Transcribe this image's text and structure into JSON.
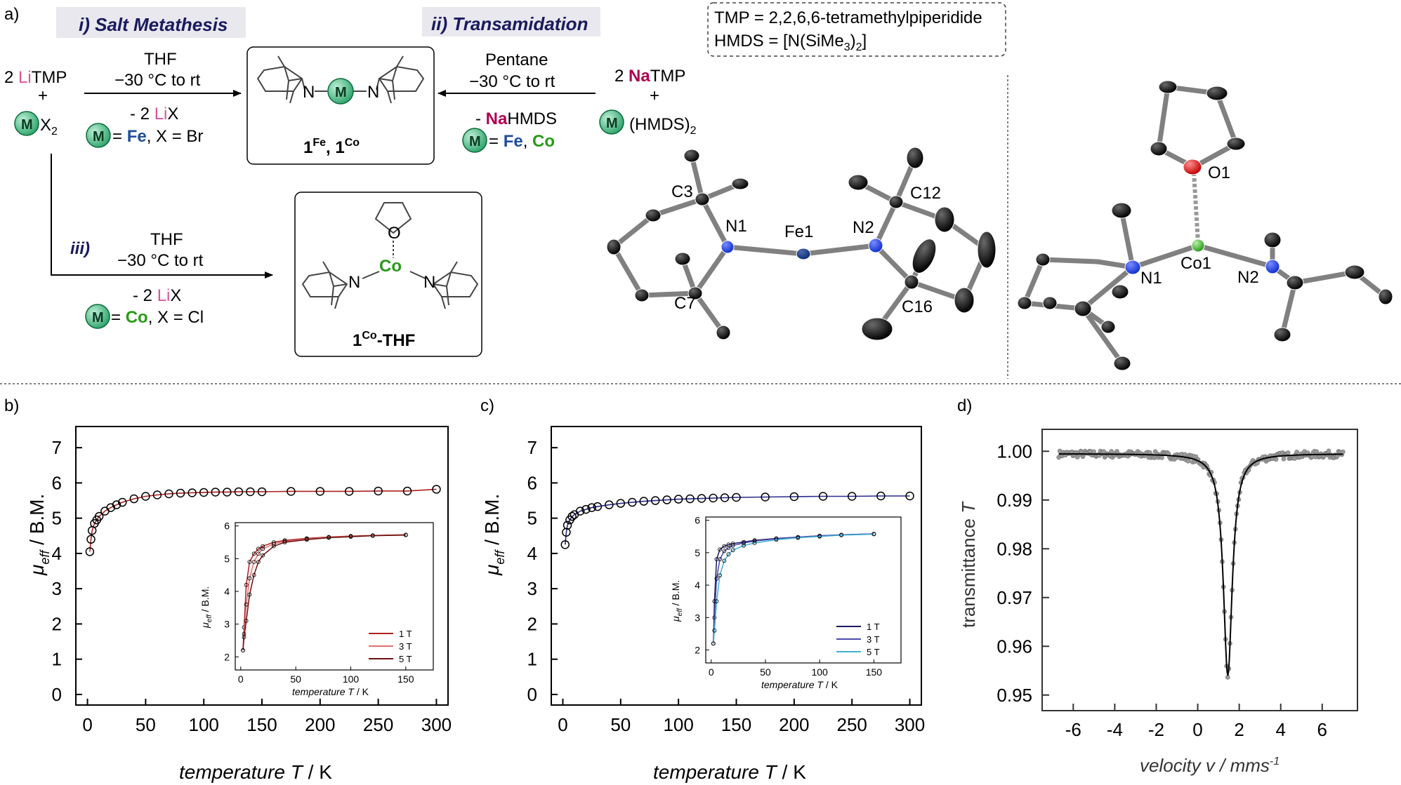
{
  "panel_labels": {
    "a": "a)",
    "b": "b)",
    "c": "c)",
    "d": "d)"
  },
  "scheme": {
    "route1": {
      "label": "i) Salt Metathesis"
    },
    "route2": {
      "label": "ii) Transamidation"
    },
    "route3": {
      "label": "iii)"
    },
    "legend": {
      "line1": "TMP = 2,2,6,6-tetramethylpiperidide",
      "line2_pre": "HMDS = [N(SiMe",
      "line2_sub": "3",
      "line2_mid": ")",
      "line2_sub2": "2",
      "line2_post": "]"
    },
    "left_reagent": {
      "count": "2 ",
      "li": "Li",
      "tmp": "TMP",
      "plus": "+",
      "m": "M",
      "x2": "X",
      "x2_sub": "2"
    },
    "right_reagent": {
      "count": "2 ",
      "na": "Na",
      "tmp": "TMP",
      "plus": "+",
      "m": "M",
      "hmds": "(HMDS)",
      "hmds_sub": "2"
    },
    "arrow1": {
      "solvent": "THF",
      "temp": "−30 °C to rt",
      "byproduct_pre": "- 2 ",
      "byproduct_li": "Li",
      "byproduct_post": "X",
      "cond_eq": " = ",
      "cond_fe": "Fe",
      "cond_rest": ", X = Br"
    },
    "arrow2": {
      "solvent": "Pentane",
      "temp": "−30 °C to rt",
      "byproduct_pre": "- ",
      "byproduct_na": "Na",
      "byproduct_post": "HMDS",
      "cond_eq": " = ",
      "cond_fe": "Fe",
      "cond_comma": ", ",
      "cond_co": "Co"
    },
    "arrow3": {
      "solvent": "THF",
      "temp": "−30 °C to rt",
      "byproduct_pre": "- 2 ",
      "byproduct_li": "Li",
      "byproduct_post": "X",
      "cond_eq": " = ",
      "cond_co": "Co",
      "cond_rest": ", X = Cl"
    },
    "product1": {
      "n_left": "N",
      "n_right": "N",
      "m": "M",
      "lab1": "1",
      "sup1": "Fe",
      "comma": ", ",
      "lab2": "1",
      "sup2": "Co"
    },
    "product2": {
      "n_left": "N",
      "n_right": "N",
      "o": "O",
      "co": "Co",
      "lab": "1",
      "sup": "Co",
      "post": "-THF"
    }
  },
  "xray_fe": {
    "atoms": [
      "C3",
      "N1",
      "Fe1",
      "N2",
      "C12",
      "C7",
      "C16"
    ]
  },
  "xray_co": {
    "atoms": [
      "O1",
      "N1",
      "Co1",
      "N2"
    ]
  },
  "colors": {
    "li": "#d9559a",
    "na": "#b0004f",
    "fe": "#1f4e99",
    "co": "#2a9a1a",
    "m_ball": "#3cb87a",
    "n_atom": "#1030d0",
    "fe_atom": "#0f2f7a",
    "co_atom": "#2fbf2f",
    "o_atom": "#e01010",
    "series_red": "#b02020",
    "series_blue": "#2a2a8a"
  },
  "chart_data": [
    {
      "type": "scatter",
      "panel": "b)",
      "xlabel_italic": "temperature T",
      "xlabel_unit": " / K",
      "ylabel_mu": "μ",
      "ylabel_sub": "eff",
      "ylabel_unit": " / B.M.",
      "xlim": [
        -10,
        310
      ],
      "ylim": [
        -0.3,
        7.6
      ],
      "xticks": [
        0,
        50,
        100,
        150,
        200,
        250,
        300
      ],
      "yticks": [
        0,
        1,
        2,
        3,
        4,
        5,
        6,
        7
      ],
      "series": [
        {
          "x": [
            2,
            3,
            4,
            6,
            8,
            10,
            15,
            20,
            25,
            30,
            40,
            50,
            60,
            70,
            80,
            90,
            100,
            110,
            120,
            130,
            140,
            150,
            175,
            200,
            225,
            250,
            275,
            300
          ],
          "y": [
            4.05,
            4.4,
            4.65,
            4.85,
            4.95,
            5.05,
            5.2,
            5.3,
            5.38,
            5.45,
            5.55,
            5.62,
            5.66,
            5.69,
            5.71,
            5.72,
            5.73,
            5.74,
            5.74,
            5.75,
            5.75,
            5.75,
            5.76,
            5.76,
            5.76,
            5.77,
            5.77,
            5.82
          ]
        }
      ],
      "inset": {
        "xlabel_italic": "temperature T",
        "xlabel_unit": " / K",
        "ylabel_mu": "μ",
        "ylabel_sub": "eff",
        "ylabel_unit": " / B.M.",
        "xlim": [
          -5,
          175
        ],
        "ylim": [
          1.6,
          6.1
        ],
        "xticks": [
          0,
          50,
          100,
          150
        ],
        "yticks": [
          2,
          3,
          4,
          5,
          6
        ],
        "series": [
          {
            "name": "1 T",
            "color": "#b02020",
            "x": [
              2,
              3,
              5,
              8,
              12,
              16,
              20,
              30,
              40,
              60,
              80,
              100,
              120,
              150
            ],
            "y": [
              2.2,
              2.9,
              4.2,
              4.9,
              5.15,
              5.3,
              5.38,
              5.5,
              5.56,
              5.62,
              5.66,
              5.69,
              5.71,
              5.73
            ]
          },
          {
            "name": "3 T",
            "color": "#e07070",
            "x": [
              2,
              3,
              5,
              8,
              12,
              16,
              20,
              30,
              40,
              60,
              80,
              100,
              120,
              150
            ],
            "y": [
              2.2,
              2.7,
              3.6,
              4.4,
              4.9,
              5.15,
              5.3,
              5.45,
              5.53,
              5.6,
              5.65,
              5.68,
              5.7,
              5.72
            ]
          },
          {
            "name": "5 T",
            "color": "#6a1010",
            "x": [
              2,
              3,
              5,
              8,
              12,
              16,
              20,
              30,
              40,
              60,
              80,
              100,
              120,
              150
            ],
            "y": [
              2.2,
              2.6,
              3.1,
              3.9,
              4.5,
              4.9,
              5.1,
              5.38,
              5.5,
              5.58,
              5.64,
              5.67,
              5.7,
              5.72
            ]
          }
        ]
      }
    },
    {
      "type": "scatter",
      "panel": "c)",
      "xlabel_italic": "temperature T",
      "xlabel_unit": " / K",
      "ylabel_mu": "μ",
      "ylabel_sub": "eff",
      "ylabel_unit": " / B.M.",
      "xlim": [
        -10,
        310
      ],
      "ylim": [
        -0.3,
        7.6
      ],
      "xticks": [
        0,
        50,
        100,
        150,
        200,
        250,
        300
      ],
      "yticks": [
        0,
        1,
        2,
        3,
        4,
        5,
        6,
        7
      ],
      "series": [
        {
          "x": [
            2,
            3,
            4,
            6,
            8,
            10,
            15,
            20,
            25,
            30,
            40,
            50,
            60,
            70,
            80,
            90,
            100,
            110,
            120,
            130,
            140,
            150,
            175,
            200,
            225,
            250,
            275,
            300
          ],
          "y": [
            4.25,
            4.6,
            4.8,
            4.95,
            5.05,
            5.1,
            5.2,
            5.25,
            5.3,
            5.33,
            5.38,
            5.42,
            5.45,
            5.48,
            5.5,
            5.52,
            5.54,
            5.55,
            5.56,
            5.57,
            5.58,
            5.59,
            5.6,
            5.61,
            5.62,
            5.62,
            5.63,
            5.63
          ]
        }
      ],
      "inset": {
        "xlabel_italic": "temperature T",
        "xlabel_unit": " / K",
        "ylabel_mu": "μ",
        "ylabel_sub": "eff",
        "ylabel_unit": " / B.M.",
        "xlim": [
          -5,
          175
        ],
        "ylim": [
          1.6,
          6.1
        ],
        "xticks": [
          0,
          50,
          100,
          150
        ],
        "yticks": [
          2,
          3,
          4,
          5,
          6
        ],
        "series": [
          {
            "name": "1 T",
            "color": "#1a1a60",
            "x": [
              2,
              3,
              5,
              8,
              12,
              16,
              20,
              30,
              40,
              60,
              80,
              100,
              120,
              150
            ],
            "y": [
              2.2,
              3.5,
              4.8,
              5.1,
              5.2,
              5.25,
              5.28,
              5.33,
              5.38,
              5.44,
              5.48,
              5.52,
              5.55,
              5.58
            ]
          },
          {
            "name": "3 T",
            "color": "#4a4ab0",
            "x": [
              2,
              3,
              5,
              8,
              12,
              16,
              20,
              30,
              40,
              60,
              80,
              100,
              120,
              150
            ],
            "y": [
              2.2,
              3.0,
              4.2,
              4.8,
              5.05,
              5.15,
              5.22,
              5.3,
              5.36,
              5.43,
              5.48,
              5.52,
              5.55,
              5.58
            ]
          },
          {
            "name": "5 T",
            "color": "#40b0d0",
            "x": [
              2,
              3,
              5,
              8,
              12,
              16,
              20,
              30,
              40,
              60,
              80,
              100,
              120,
              150
            ],
            "y": [
              2.2,
              2.6,
              3.5,
              4.3,
              4.75,
              4.95,
              5.08,
              5.22,
              5.3,
              5.4,
              5.46,
              5.5,
              5.54,
              5.57
            ]
          }
        ]
      }
    },
    {
      "type": "scatter",
      "panel": "d)",
      "xlabel_italic": "velocity v",
      "xlabel_unit": " / mms",
      "xlabel_sup": "-1",
      "ylabel_pre": "transmittance ",
      "ylabel_italic": "T",
      "xlim": [
        -7.5,
        7.7
      ],
      "ylim": [
        0.9468,
        1.0045
      ],
      "xticks": [
        -6,
        -4,
        -2,
        0,
        2,
        4,
        6
      ],
      "yticks": [
        0.95,
        0.96,
        0.97,
        0.98,
        0.99,
        1.0
      ],
      "ytick_labels": [
        "0.95",
        "0.96",
        "0.97",
        "0.98",
        "0.99",
        "1.00"
      ],
      "fit": {
        "center": 1.45,
        "width": 0.52,
        "depth": 0.0455,
        "baseline": 0.9995
      },
      "points": {
        "count": 260,
        "x_range": [
          -6.7,
          7.0
        ],
        "noise": 0.0007
      }
    }
  ]
}
